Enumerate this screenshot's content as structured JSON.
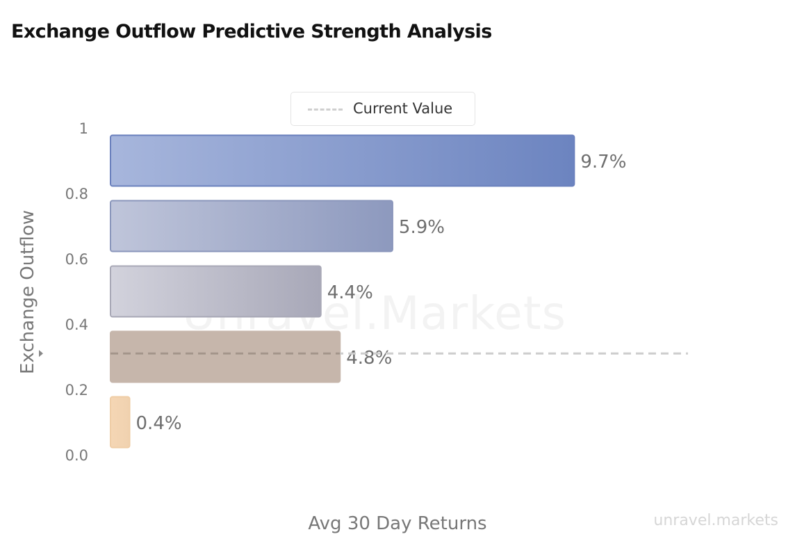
{
  "title": "Exchange Outflow Predictive Strength Analysis",
  "watermark": "Unravel.Markets",
  "brand": "unravel.markets",
  "legend": {
    "label": "Current Value"
  },
  "chart_data": {
    "type": "bar",
    "orientation": "horizontal",
    "title": "Exchange Outflow Predictive Strength Analysis",
    "xlabel": "Avg 30 Day Returns",
    "ylabel": "Exchange Outflow",
    "y_ticks": [
      "0.0",
      "0.2",
      "0.4",
      "0.6",
      "0.8",
      "1"
    ],
    "ylim": [
      0,
      1
    ],
    "bars": [
      {
        "y": 0.9,
        "value": 9.7,
        "label": "9.7%",
        "color_start": "#a7b6dc",
        "color_end": "#6c84c0",
        "border": "#6a80bd"
      },
      {
        "y": 0.7,
        "value": 5.9,
        "label": "5.9%",
        "color_start": "#bfc5da",
        "color_end": "#8d99be",
        "border": "#8a96bb"
      },
      {
        "y": 0.5,
        "value": 4.4,
        "label": "4.4%",
        "color_start": "#d2d2dc",
        "color_end": "#a8a8b8",
        "border": "#a8a8b6"
      },
      {
        "y": 0.3,
        "value": 4.8,
        "label": "4.8%",
        "color_start": "#c6b6ab",
        "color_end": "#c6b6ab",
        "border": "#c6b6ab"
      },
      {
        "y": 0.1,
        "value": 0.4,
        "label": "0.4%",
        "color_start": "#f5d6b4",
        "color_end": "#f0d2b0",
        "border": "#efcda6"
      }
    ],
    "current_value": {
      "y": 0.31,
      "label": "Current Value"
    },
    "grid": false,
    "legend_position": "top-center"
  }
}
